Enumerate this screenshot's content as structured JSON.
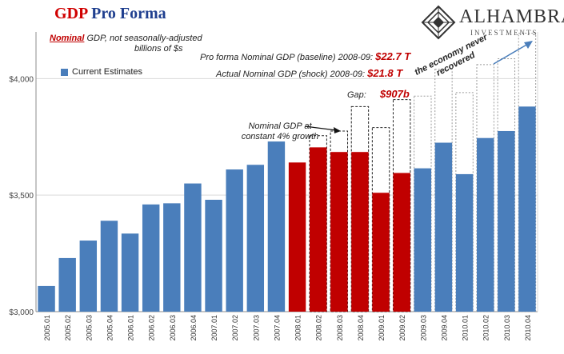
{
  "title": {
    "part1": "GDP",
    "part2": "Pro Forma"
  },
  "subtitle": {
    "nominal": "Nominal",
    "rest": "GDP, not seasonally-adjusted",
    "line2": "billions of $s"
  },
  "legend": {
    "label": "Current Estimates"
  },
  "annotations": {
    "baseline_text": "Pro forma Nominal GDP (baseline) 2008-09:",
    "baseline_value": "$22.7 T",
    "actual_text": "Actual Nominal GDP (shock) 2008-09:",
    "actual_value": "$21.8 T",
    "gap_text": "Gap:",
    "gap_value": "$907b",
    "growth_note": "Nominal GDP at constant 4% growth",
    "recovery_note": "the economy never recovered"
  },
  "logo": {
    "brand": "ALHAMBRA",
    "sub": "INVESTMENTS"
  },
  "colors": {
    "blue": "#4a7ebb",
    "red": "#c00000",
    "grid": "#d9d9d9",
    "axis": "#8c8c8c"
  },
  "chart_data": {
    "type": "bar",
    "categories": [
      "2005.01",
      "2005.02",
      "2005.03",
      "2005.04",
      "2006.01",
      "2006.02",
      "2006.03",
      "2006.04",
      "2007.01",
      "2007.02",
      "2007.03",
      "2007.04",
      "2008.01",
      "2008.02",
      "2008.03",
      "2008.04",
      "2009.01",
      "2009.02",
      "2009.03",
      "2009.04",
      "2010.01",
      "2010.02",
      "2010.03",
      "2010.04"
    ],
    "values": [
      3110,
      3230,
      3305,
      3390,
      3335,
      3460,
      3465,
      3550,
      3480,
      3610,
      3630,
      3730,
      3640,
      3705,
      3685,
      3685,
      3510,
      3595,
      3615,
      3725,
      3590,
      3745,
      3775,
      3880
    ],
    "highlighted": [
      false,
      false,
      false,
      false,
      false,
      false,
      false,
      false,
      false,
      false,
      false,
      false,
      true,
      true,
      true,
      true,
      true,
      true,
      false,
      false,
      false,
      false,
      false,
      false
    ],
    "pro_forma_4pct_growth": [
      null,
      null,
      null,
      null,
      null,
      null,
      null,
      null,
      null,
      null,
      null,
      null,
      null,
      3755,
      3775,
      3880,
      3790,
      3910,
      3925,
      4040,
      3940,
      4060,
      4085,
      4195
    ],
    "ylim": [
      3000,
      4200
    ],
    "yticks": [
      3000,
      3500,
      4000
    ],
    "ytick_labels": [
      "$3,000",
      "$3,500",
      "$4,000"
    ],
    "grid": true
  }
}
